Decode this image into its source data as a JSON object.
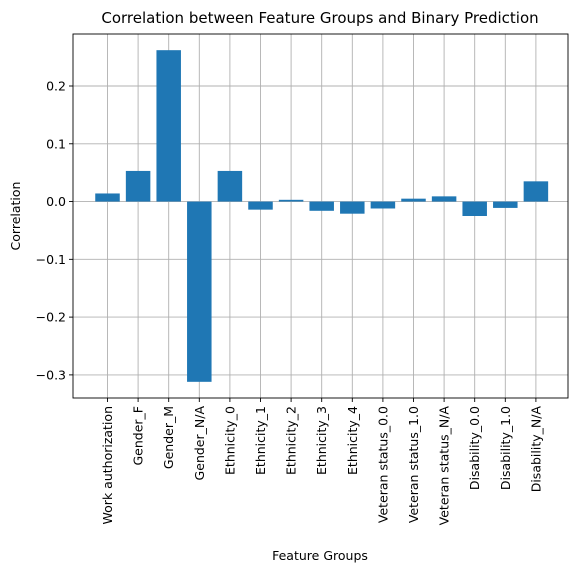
{
  "chart_data": {
    "type": "bar",
    "title": "Correlation between Feature Groups and Binary Prediction",
    "xlabel": "Feature Groups",
    "ylabel": "Correlation",
    "categories": [
      "Work authorization",
      "Gender_F",
      "Gender_M",
      "Gender_N/A",
      "Ethnicity_0",
      "Ethnicity_1",
      "Ethnicity_2",
      "Ethnicity_3",
      "Ethnicity_4",
      "Veteran status_0.0",
      "Veteran status_1.0",
      "Veteran status_N/A",
      "Disability_0.0",
      "Disability_1.0",
      "Disability_N/A"
    ],
    "values": [
      0.014,
      0.053,
      0.262,
      -0.312,
      0.053,
      -0.014,
      0.003,
      -0.016,
      -0.021,
      -0.012,
      0.005,
      0.009,
      -0.025,
      -0.011,
      0.035
    ],
    "ylim": [
      -0.34,
      0.29
    ],
    "yticks": [
      -0.3,
      -0.2,
      -0.1,
      0.0,
      0.1,
      0.2
    ],
    "ytick_labels": [
      "−0.3",
      "−0.2",
      "−0.1",
      "0.0",
      "0.1",
      "0.2"
    ],
    "grid": true,
    "bar_color": "#1f77b4"
  }
}
